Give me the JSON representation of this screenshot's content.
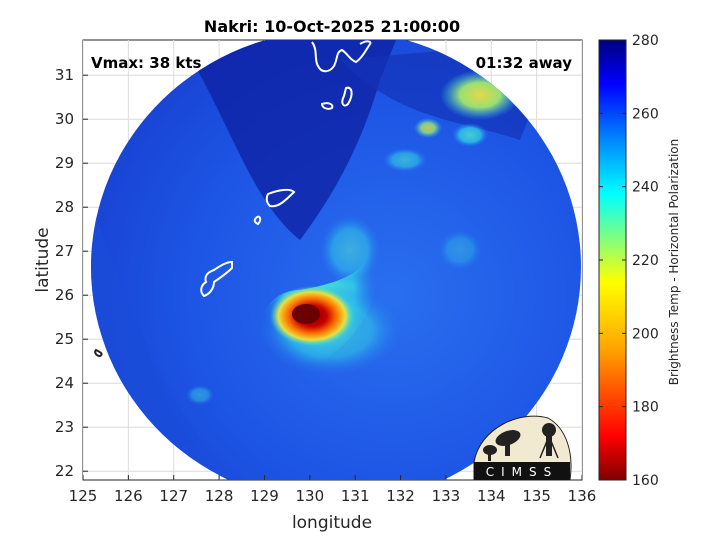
{
  "title": "Nakri: 10-Oct-2025 21:00:00",
  "vmax_label": "Vmax: 38 kts",
  "time_away_label": "01:32 away",
  "xlabel": "longitude",
  "ylabel": "latitude",
  "x_ticks": [
    "125",
    "126",
    "127",
    "128",
    "129",
    "130",
    "131",
    "132",
    "133",
    "134",
    "135",
    "136"
  ],
  "y_ticks": [
    "22",
    "23",
    "24",
    "25",
    "26",
    "27",
    "28",
    "29",
    "30",
    "31"
  ],
  "colorbar": {
    "label": "Brightness Temp - Horizontal Polarization",
    "ticks": [
      "160",
      "180",
      "200",
      "220",
      "240",
      "260",
      "280"
    ],
    "min": 160,
    "max": 280
  },
  "logo_text": "CIMSS",
  "map": {
    "lon_range": [
      125,
      136
    ],
    "lat_range": [
      21.8,
      31.8
    ],
    "swath_center": [
      130.6,
      26.9
    ],
    "storm_center": [
      130.2,
      25.7
    ]
  },
  "colors": {
    "cold_bg": "#1a44d8",
    "deep_blue": "#0a1a8a",
    "cyan": "#1ec8e8",
    "core_red": "#8a0000",
    "coast": "#ffffff"
  }
}
